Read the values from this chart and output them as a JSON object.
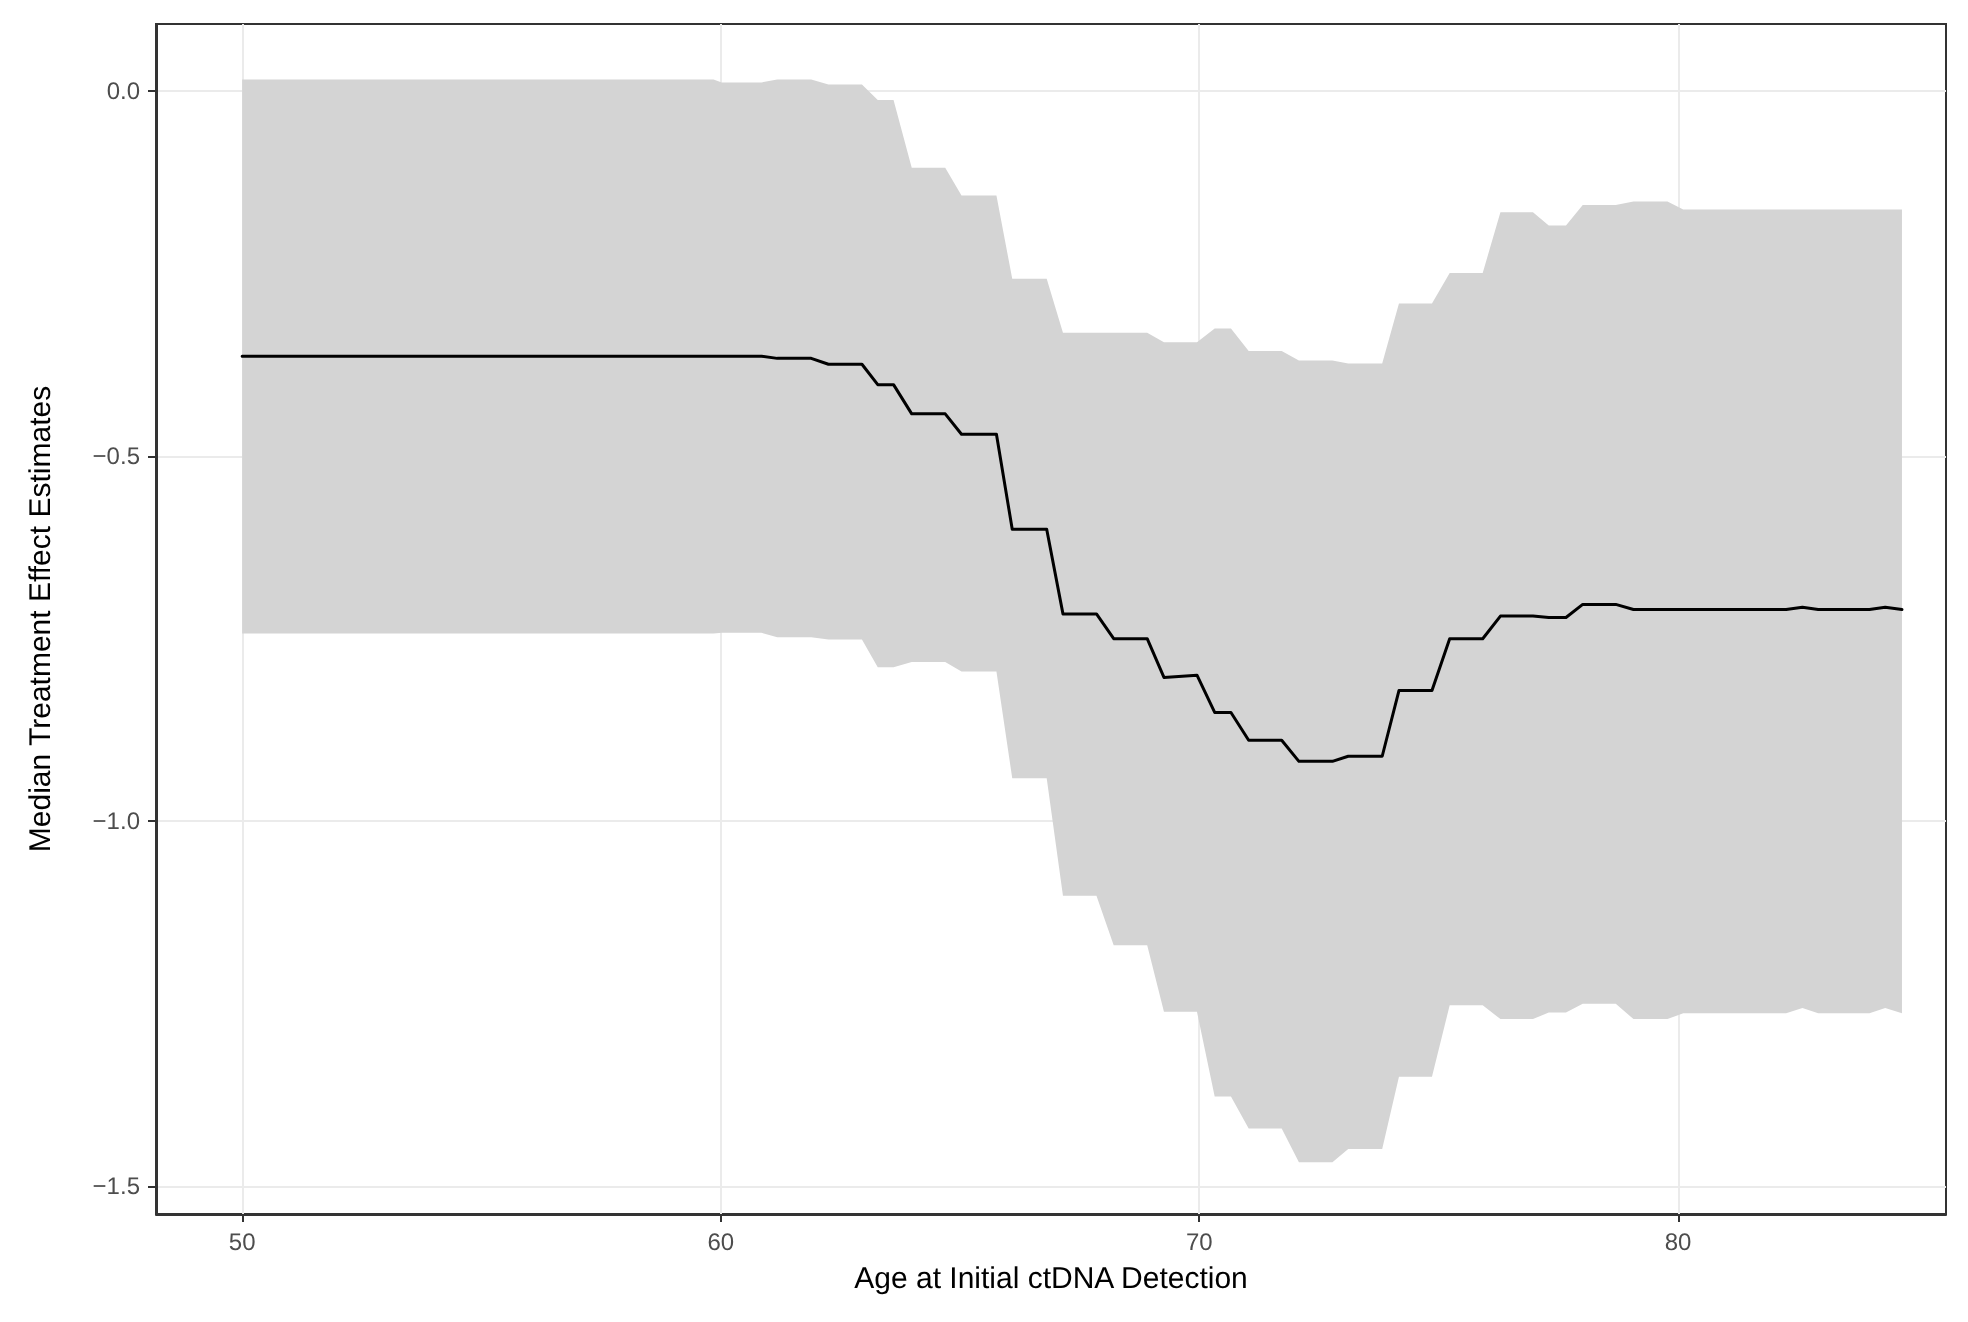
{
  "chart_data": {
    "type": "line",
    "xlabel": "Age at Initial ctDNA Detection",
    "ylabel": "Median Treatment Effect Estimates",
    "x": [
      50,
      59.85,
      60.02,
      60.85,
      61.18,
      61.89,
      62.25,
      62.95,
      63.28,
      63.61,
      63.99,
      64.69,
      65.03,
      65.76,
      66.09,
      66.81,
      67.15,
      67.85,
      68.21,
      68.91,
      69.26,
      69.95,
      70.32,
      70.66,
      71.03,
      71.72,
      72.08,
      72.78,
      73.11,
      73.82,
      74.17,
      74.86,
      75.23,
      75.92,
      76.29,
      76.97,
      77.3,
      77.66,
      78.01,
      78.7,
      79.07,
      79.78,
      80.11,
      82.26,
      82.6,
      82.93,
      84.0,
      84.33,
      84.68
    ],
    "series": [
      {
        "color": "#000000",
        "values": [
          -0.363,
          -0.363,
          -0.363,
          -0.363,
          -0.366,
          -0.366,
          -0.374,
          -0.374,
          -0.402,
          -0.402,
          -0.442,
          -0.442,
          -0.47,
          -0.47,
          -0.6,
          -0.6,
          -0.716,
          -0.716,
          -0.75,
          -0.75,
          -0.803,
          -0.8,
          -0.851,
          -0.851,
          -0.889,
          -0.889,
          -0.918,
          -0.918,
          -0.911,
          -0.911,
          -0.821,
          -0.821,
          -0.75,
          -0.75,
          -0.719,
          -0.719,
          -0.721,
          -0.721,
          -0.703,
          -0.703,
          -0.71,
          -0.71,
          -0.71,
          -0.71,
          -0.707,
          -0.71,
          -0.71,
          -0.707,
          -0.71
        ],
        "lower": [
          -0.743,
          -0.743,
          -0.742,
          -0.742,
          -0.748,
          -0.748,
          -0.751,
          -0.751,
          -0.789,
          -0.789,
          -0.782,
          -0.782,
          -0.795,
          -0.795,
          -0.941,
          -0.941,
          -1.102,
          -1.102,
          -1.17,
          -1.17,
          -1.261,
          -1.261,
          -1.377,
          -1.377,
          -1.421,
          -1.421,
          -1.467,
          -1.467,
          -1.449,
          -1.449,
          -1.35,
          -1.35,
          -1.252,
          -1.252,
          -1.271,
          -1.271,
          -1.262,
          -1.262,
          -1.25,
          -1.25,
          -1.271,
          -1.271,
          -1.263,
          -1.263,
          -1.256,
          -1.263,
          -1.263,
          -1.256,
          -1.263
        ],
        "upper": [
          0.016,
          0.016,
          0.012,
          0.012,
          0.016,
          0.016,
          0.009,
          0.009,
          -0.012,
          -0.012,
          -0.105,
          -0.105,
          -0.143,
          -0.143,
          -0.257,
          -0.257,
          -0.331,
          -0.331,
          -0.331,
          -0.331,
          -0.344,
          -0.344,
          -0.325,
          -0.325,
          -0.356,
          -0.356,
          -0.369,
          -0.369,
          -0.373,
          -0.373,
          -0.291,
          -0.291,
          -0.249,
          -0.249,
          -0.166,
          -0.166,
          -0.184,
          -0.184,
          -0.156,
          -0.156,
          -0.151,
          -0.151,
          -0.162,
          -0.162,
          -0.162,
          -0.162,
          -0.162,
          -0.162,
          -0.162
        ]
      }
    ],
    "xlim": [
      48.2,
      85.6
    ],
    "xticks": [
      50,
      60,
      70,
      80
    ],
    "ylim": [
      -1.538,
      0.092
    ],
    "yticks": [
      {
        "value": -1.5,
        "label": "−1.5"
      },
      {
        "value": -1,
        "label": "−1.0"
      },
      {
        "value": -0.5,
        "label": "−0.5"
      },
      {
        "value": 0,
        "label": "0.0"
      }
    ],
    "grid": true,
    "marker": "none",
    "line_style": "solid"
  }
}
